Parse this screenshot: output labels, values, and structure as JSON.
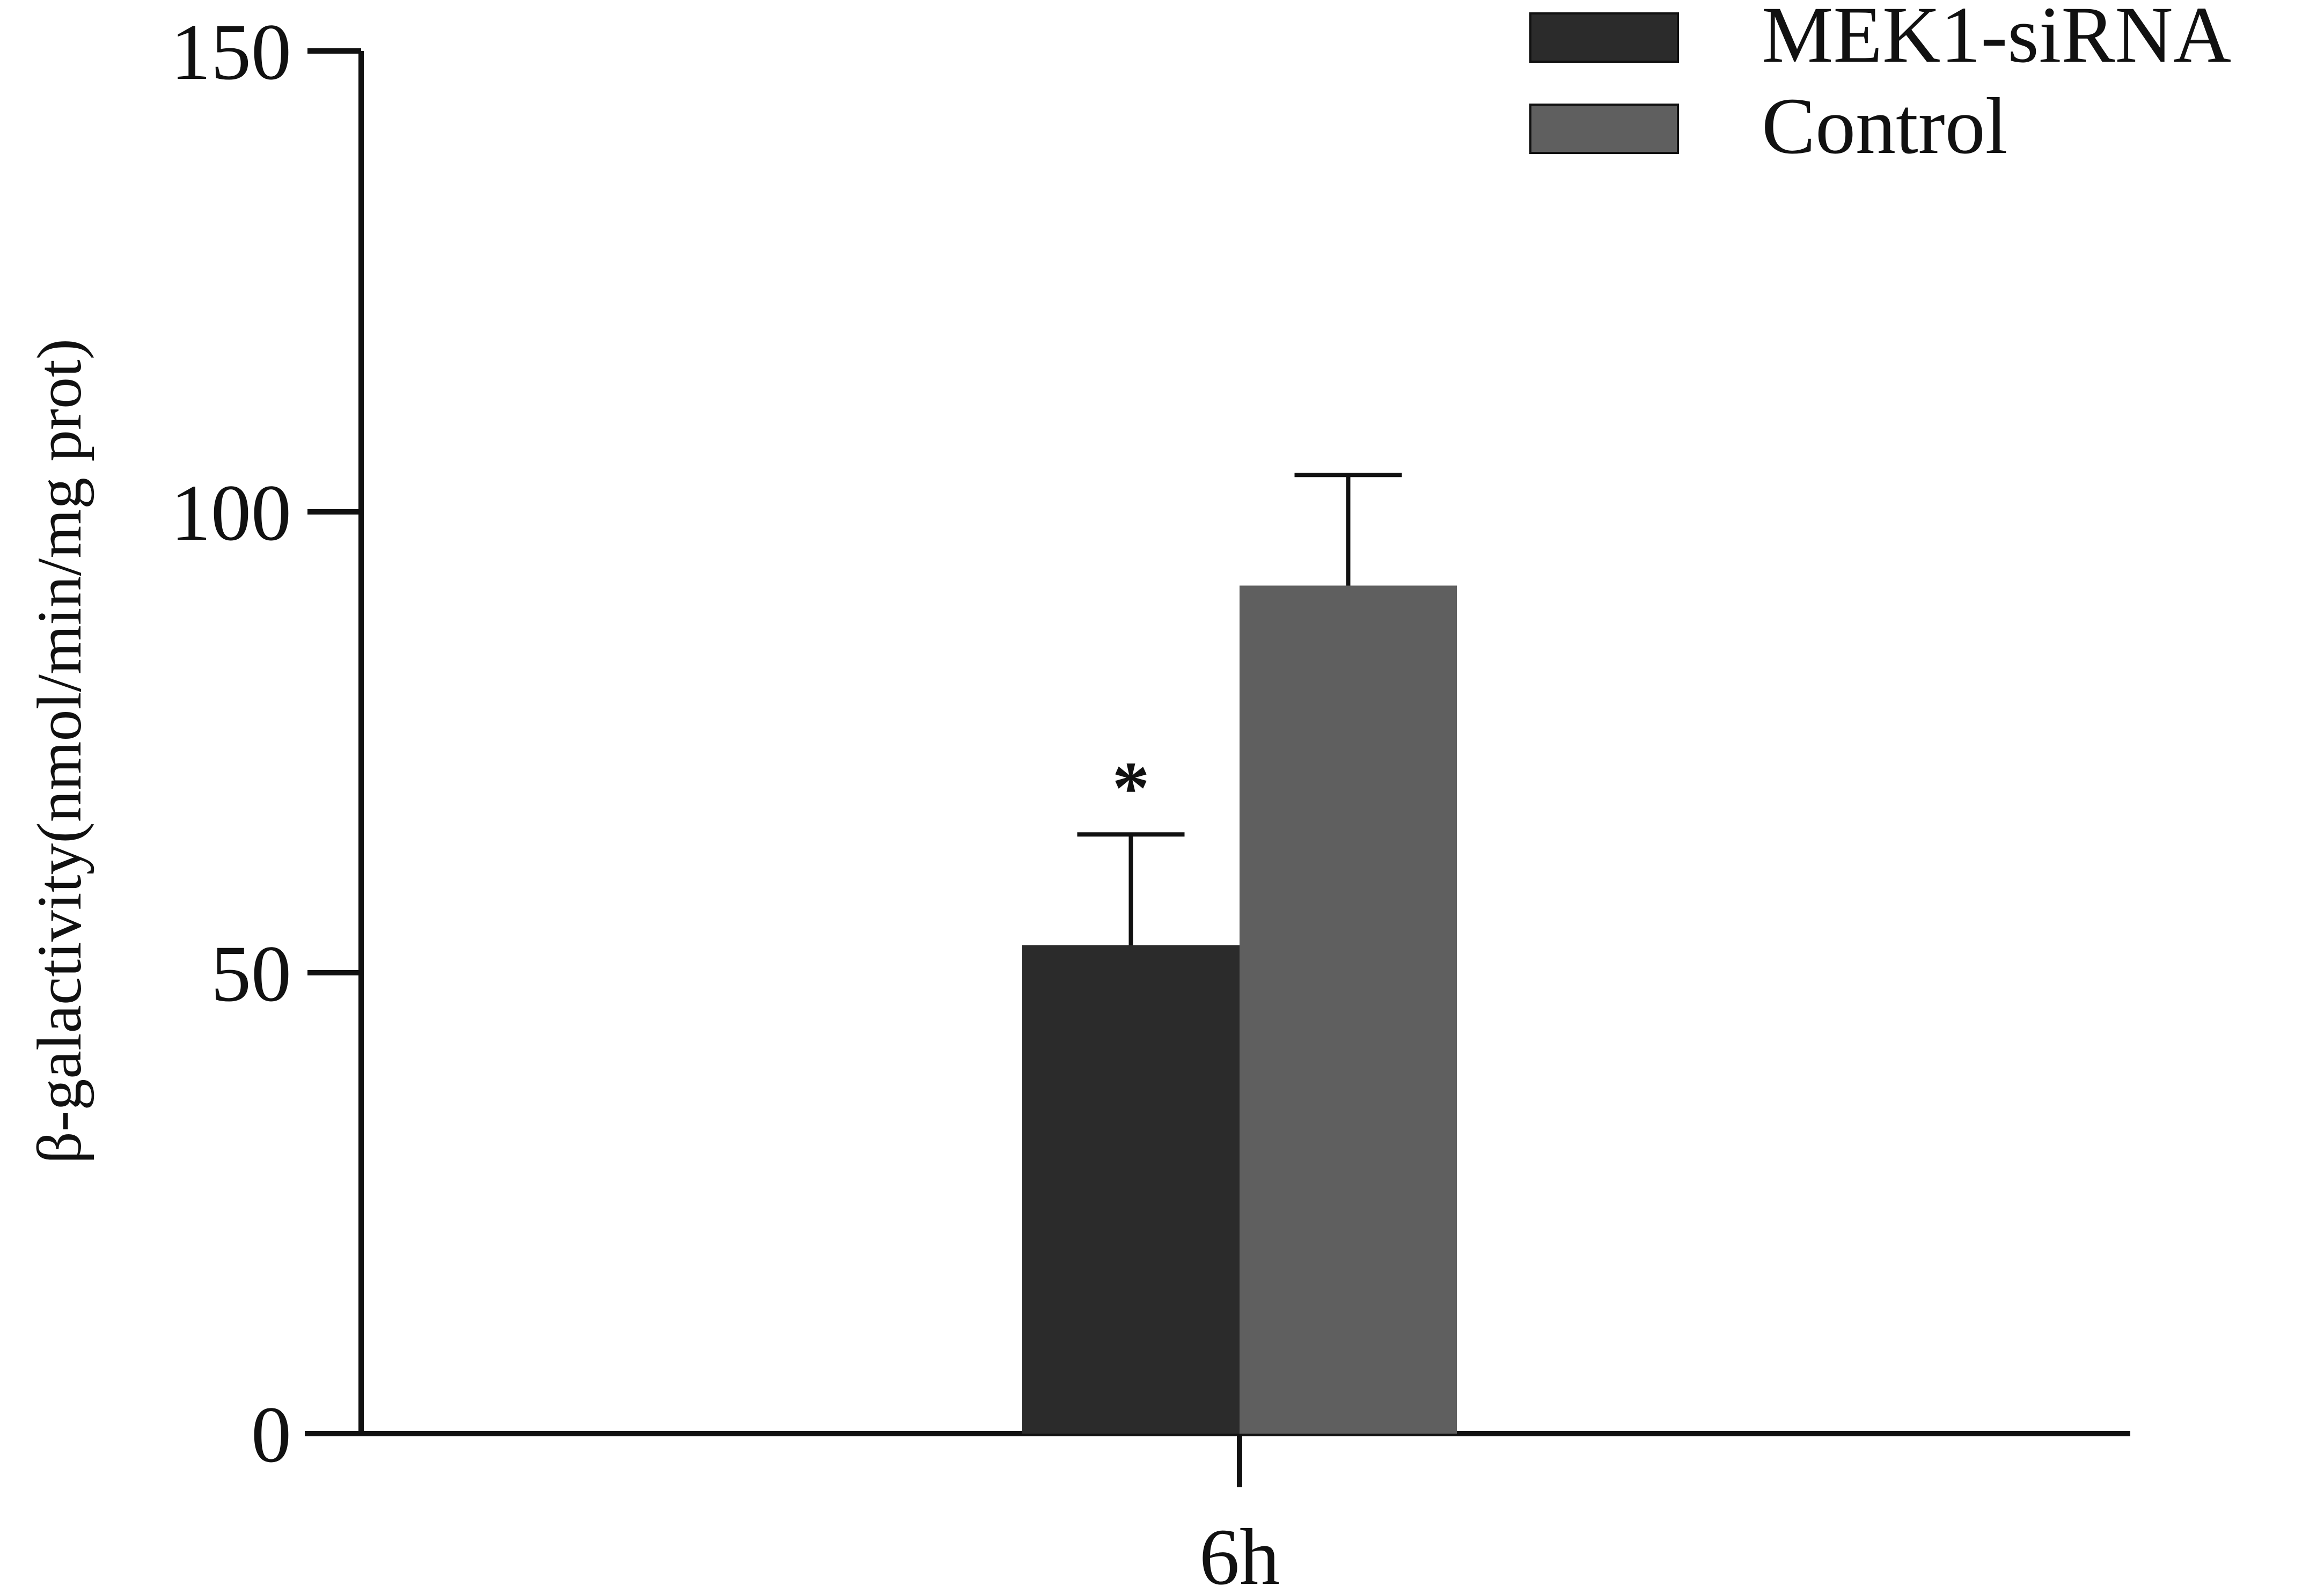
{
  "chart_data": {
    "type": "bar",
    "categories": [
      "6h"
    ],
    "series": [
      {
        "name": "MEK1-siRNA",
        "values": [
          53
        ],
        "error": [
          12
        ],
        "color": "#2b2b2b",
        "significance": "*"
      },
      {
        "name": "Control",
        "values": [
          92
        ],
        "error": [
          12
        ],
        "color": "#5f5f5f",
        "significance": ""
      }
    ],
    "ylabel": "β-galactivity(nmol/min/mg prot)",
    "xlabel": "",
    "ylim": [
      0,
      150
    ],
    "yticks": [
      "0",
      "50",
      "100",
      "150"
    ],
    "grid": false,
    "legend": "top-right"
  }
}
